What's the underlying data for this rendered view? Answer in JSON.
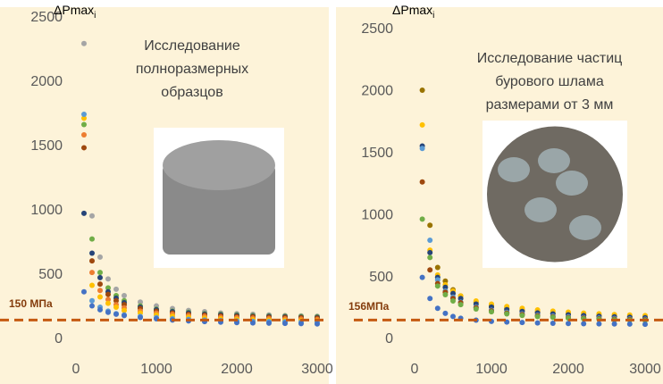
{
  "chart_data": [
    {
      "type": "scatter",
      "ylabel": "ΔPmax",
      "ylabel_sub": "i",
      "annotation": [
        "Исследование",
        "полноразмерных",
        "образцов"
      ],
      "threshold": {
        "value": 150,
        "label": "150 МПа",
        "color": "#c55a11"
      },
      "xlim": [
        0,
        3000
      ],
      "ylim": [
        0,
        2500
      ],
      "xticks": [
        0,
        1000,
        2000,
        3000
      ],
      "yticks": [
        0,
        500,
        1000,
        1500,
        2000,
        2500
      ],
      "x": [
        100,
        200,
        300,
        400,
        500,
        600,
        800,
        1000,
        1200,
        1400,
        1600,
        1800,
        2000,
        2200,
        2400,
        2600,
        2800,
        3000
      ],
      "series": [
        {
          "color": "#a5a5a5",
          "values": [
            2300,
            960,
            640,
            470,
            390,
            340,
            290,
            260,
            240,
            225,
            215,
            205,
            200,
            195,
            190,
            185,
            182,
            180
          ]
        },
        {
          "color": "#70ad47",
          "values": [
            1670,
            780,
            520,
            400,
            340,
            300,
            260,
            235,
            220,
            210,
            200,
            195,
            190,
            185,
            182,
            180,
            178,
            175
          ]
        },
        {
          "color": "#264478",
          "values": [
            980,
            670,
            480,
            370,
            320,
            285,
            250,
            230,
            215,
            205,
            195,
            190,
            185,
            180,
            178,
            175,
            172,
            170
          ]
        },
        {
          "color": "#9e480e",
          "values": [
            1490,
            610,
            430,
            350,
            300,
            270,
            240,
            220,
            205,
            195,
            188,
            182,
            178,
            175,
            172,
            170,
            168,
            165
          ]
        },
        {
          "color": "#ed7d31",
          "values": [
            1590,
            520,
            380,
            310,
            270,
            245,
            220,
            205,
            195,
            185,
            178,
            172,
            168,
            165,
            162,
            160,
            158,
            155
          ]
        },
        {
          "color": "#ffc000",
          "values": [
            1720,
            420,
            330,
            280,
            250,
            225,
            205,
            190,
            180,
            172,
            165,
            160,
            156,
            153,
            150,
            148,
            146,
            145
          ]
        },
        {
          "color": "#5b9bd5",
          "values": [
            1750,
            300,
            250,
            220,
            200,
            190,
            178,
            168,
            160,
            155,
            150,
            146,
            143,
            140,
            138,
            136,
            134,
            132
          ]
        },
        {
          "color": "#4472c4",
          "values": [
            370,
            260,
            230,
            210,
            195,
            185,
            170,
            160,
            150,
            143,
            138,
            134,
            130,
            128,
            126,
            124,
            122,
            120
          ]
        }
      ]
    },
    {
      "type": "scatter",
      "ylabel": "ΔPmax",
      "ylabel_sub": "i",
      "annotation": [
        "Исследование частиц",
        "бурового шлама",
        "размерами от 3 мм"
      ],
      "threshold": {
        "value": 156,
        "label": "156МПа",
        "color": "#c55a11"
      },
      "xlim": [
        0,
        3000
      ],
      "ylim": [
        0,
        2500
      ],
      "xticks": [
        0,
        1000,
        2000,
        3000
      ],
      "yticks": [
        0,
        500,
        1000,
        1500,
        2000,
        2500
      ],
      "x": [
        100,
        200,
        300,
        400,
        500,
        600,
        800,
        1000,
        1200,
        1400,
        1600,
        1800,
        2000,
        2200,
        2400,
        2600,
        2800,
        3000
      ],
      "series": [
        {
          "color": "#997300",
          "values": [
            2010,
            920,
            580,
            470,
            400,
            350,
            300,
            270,
            250,
            235,
            222,
            212,
            205,
            198,
            192,
            188,
            184,
            180
          ]
        },
        {
          "color": "#ffc000",
          "values": [
            1730,
            720,
            520,
            440,
            390,
            350,
            310,
            285,
            265,
            250,
            238,
            228,
            220,
            212,
            206,
            200,
            196,
            192
          ]
        },
        {
          "color": "#264478",
          "values": [
            1560,
            700,
            500,
            420,
            370,
            330,
            285,
            260,
            240,
            225,
            213,
            205,
            198,
            192,
            186,
            182,
            178,
            175
          ]
        },
        {
          "color": "#5b9bd5",
          "values": [
            1540,
            800,
            480,
            390,
            340,
            300,
            260,
            235,
            218,
            205,
            195,
            188,
            182,
            176,
            172,
            168,
            165,
            162
          ]
        },
        {
          "color": "#9e480e",
          "values": [
            1270,
            560,
            450,
            380,
            330,
            295,
            255,
            230,
            212,
            200,
            190,
            182,
            176,
            171,
            167,
            163,
            160,
            158
          ]
        },
        {
          "color": "#70ad47",
          "values": [
            970,
            660,
            430,
            360,
            310,
            280,
            245,
            222,
            205,
            193,
            184,
            177,
            171,
            166,
            162,
            158,
            155,
            152
          ]
        },
        {
          "color": "#4472c4",
          "values": [
            500,
            330,
            250,
            210,
            185,
            170,
            155,
            145,
            140,
            136,
            132,
            130,
            128,
            126,
            125,
            124,
            123,
            122
          ]
        }
      ]
    }
  ]
}
